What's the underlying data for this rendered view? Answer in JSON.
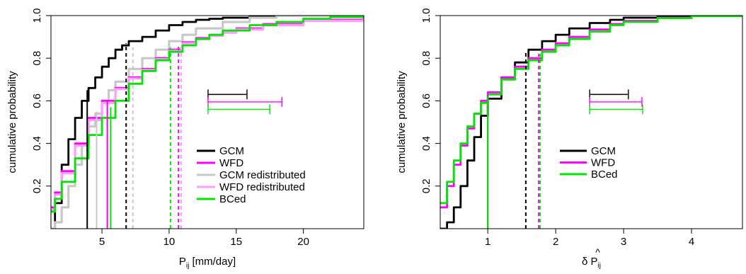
{
  "colors": {
    "GCM": "#000000",
    "WFD": "#ff00ff",
    "GCM redistributed": "#c8c8c8",
    "WFD redistributed": "#ff9cff",
    "BCed": "#00e600"
  },
  "chart_data": [
    {
      "type": "line",
      "subtype": "empirical-cdf",
      "title": "",
      "xlabel": "P",
      "xlabel_sub": "ij",
      "xlabel_unit": " [mm/day]",
      "ylabel": "cumulative probability",
      "xlim": [
        1.2,
        24.5
      ],
      "ylim": [
        0,
        1
      ],
      "xticks": [
        {
          "v": 5,
          "label": "5"
        },
        {
          "v": 10,
          "label": "10"
        },
        {
          "v": 15,
          "label": "15"
        },
        {
          "v": 20,
          "label": "20"
        }
      ],
      "yticks": [
        {
          "v": 0.2,
          "label": "0.2"
        },
        {
          "v": 0.4,
          "label": "0.4"
        },
        {
          "v": 0.6,
          "label": "0.6"
        },
        {
          "v": 0.8,
          "label": "0.8"
        },
        {
          "v": 1.0,
          "label": "1.0"
        }
      ],
      "grid": false,
      "legend": {
        "placement": "center-right",
        "entries": [
          "GCM",
          "WFD",
          "GCM redistributed",
          "WFD redistributed",
          "BCed"
        ]
      },
      "series": [
        {
          "name": "GCM",
          "x": [
            1.2,
            1.5,
            2.0,
            2.5,
            3.0,
            3.5,
            4.0,
            4.5,
            5.0,
            5.5,
            6.0,
            6.5,
            7.0,
            8.0,
            9.0,
            10.0,
            11.0,
            12.0,
            13.0,
            14.0,
            16.0,
            18.0,
            24.5
          ],
          "y": [
            0.0,
            0.12,
            0.3,
            0.42,
            0.52,
            0.6,
            0.66,
            0.71,
            0.76,
            0.8,
            0.84,
            0.86,
            0.88,
            0.9,
            0.93,
            0.955,
            0.97,
            0.98,
            0.985,
            0.99,
            0.997,
            1.0,
            1.0
          ]
        },
        {
          "name": "GCM redistributed",
          "x": [
            1.2,
            1.5,
            2.0,
            2.5,
            3.0,
            3.5,
            4.0,
            4.5,
            5.0,
            5.5,
            6.0,
            7.0,
            8.0,
            9.0,
            10.0,
            11.0,
            12.0,
            14.0,
            16.0,
            18.0,
            24.5
          ],
          "y": [
            0.0,
            0.03,
            0.1,
            0.2,
            0.3,
            0.4,
            0.48,
            0.54,
            0.6,
            0.65,
            0.69,
            0.75,
            0.8,
            0.84,
            0.88,
            0.91,
            0.94,
            0.97,
            0.99,
            1.0,
            1.0
          ]
        },
        {
          "name": "WFD",
          "x": [
            1.2,
            1.5,
            2.0,
            3.0,
            4.0,
            5.0,
            6.0,
            7.0,
            8.0,
            9.0,
            10.0,
            11.0,
            12.0,
            13.0,
            14.0,
            15.0,
            17.0,
            20.0,
            24.5
          ],
          "y": [
            0.1,
            0.17,
            0.27,
            0.4,
            0.52,
            0.6,
            0.66,
            0.71,
            0.75,
            0.8,
            0.84,
            0.875,
            0.895,
            0.91,
            0.925,
            0.94,
            0.96,
            0.98,
            0.99
          ]
        },
        {
          "name": "WFD redistributed",
          "x": [
            1.2,
            1.5,
            2.0,
            3.0,
            4.0,
            5.0,
            6.0,
            7.0,
            8.0,
            9.0,
            10.0,
            11.0,
            12.0,
            13.0,
            14.0,
            15.0,
            17.0,
            20.0,
            24.5
          ],
          "y": [
            0.09,
            0.16,
            0.26,
            0.39,
            0.51,
            0.59,
            0.655,
            0.705,
            0.745,
            0.795,
            0.835,
            0.87,
            0.89,
            0.905,
            0.92,
            0.935,
            0.955,
            0.975,
            0.985
          ]
        },
        {
          "name": "BCed",
          "x": [
            1.2,
            1.5,
            2.0,
            3.0,
            4.0,
            5.0,
            6.0,
            7.0,
            8.0,
            9.0,
            10.0,
            11.0,
            12.0,
            13.0,
            14.0,
            16.0,
            18.0,
            20.0,
            22.0,
            24.5
          ],
          "y": [
            0.08,
            0.14,
            0.22,
            0.33,
            0.44,
            0.52,
            0.6,
            0.68,
            0.74,
            0.79,
            0.83,
            0.86,
            0.89,
            0.91,
            0.93,
            0.955,
            0.97,
            0.985,
            0.993,
            1.0
          ]
        }
      ],
      "markers_solid": [
        {
          "series": "GCM",
          "x": 3.9,
          "y": 0.65
        },
        {
          "series": "WFD",
          "x": 5.4,
          "y": 0.6
        },
        {
          "series": "GCM redistributed",
          "x": 4.6,
          "y": 0.55
        },
        {
          "series": "BCed",
          "x": 5.65,
          "y": 0.57
        }
      ],
      "markers_dashed": [
        {
          "series": "GCM",
          "x": 6.8,
          "y": 0.87
        },
        {
          "series": "GCM redistributed",
          "x": 7.3,
          "y": 0.85
        },
        {
          "series": "BCed",
          "x": 10.1,
          "y": 0.85
        },
        {
          "series": "WFD",
          "x": 10.7,
          "y": 0.86
        },
        {
          "series": "WFD redistributed",
          "x": 10.9,
          "y": 0.86
        }
      ],
      "intervals": [
        {
          "series": "GCM",
          "x0": 12.9,
          "x1": 15.8,
          "y": 0.63
        },
        {
          "series": "WFD",
          "x0": 12.9,
          "x1": 18.4,
          "y": 0.595
        },
        {
          "series": "BCed",
          "x0": 12.9,
          "x1": 17.5,
          "y": 0.56
        }
      ]
    },
    {
      "type": "line",
      "subtype": "empirical-cdf",
      "title": "",
      "xlabel": "δ P",
      "xlabel_sub": "ij",
      "xlabel_hat": "^",
      "ylabel": "cumulative probability",
      "xlim": [
        0.3,
        4.75
      ],
      "ylim": [
        0,
        1
      ],
      "xticks": [
        {
          "v": 1,
          "label": "1"
        },
        {
          "v": 2,
          "label": "2"
        },
        {
          "v": 3,
          "label": "3"
        },
        {
          "v": 4,
          "label": "4"
        }
      ],
      "yticks": [
        {
          "v": 0.2,
          "label": "0.2"
        },
        {
          "v": 0.4,
          "label": "0.4"
        },
        {
          "v": 0.6,
          "label": "0.6"
        },
        {
          "v": 0.8,
          "label": "0.8"
        },
        {
          "v": 1.0,
          "label": "1.0"
        }
      ],
      "grid": false,
      "legend": {
        "placement": "center-right",
        "entries": [
          "GCM",
          "WFD",
          "BCed"
        ]
      },
      "series": [
        {
          "name": "GCM",
          "x": [
            0.3,
            0.4,
            0.5,
            0.6,
            0.7,
            0.8,
            0.9,
            1.0,
            1.2,
            1.4,
            1.6,
            1.8,
            2.0,
            2.2,
            2.5,
            2.8,
            3.0,
            3.5,
            4.0,
            4.75
          ],
          "y": [
            0.0,
            0.03,
            0.1,
            0.2,
            0.32,
            0.43,
            0.53,
            0.61,
            0.71,
            0.78,
            0.84,
            0.88,
            0.91,
            0.94,
            0.965,
            0.98,
            0.99,
            0.998,
            1.0,
            1.0
          ]
        },
        {
          "name": "WFD",
          "x": [
            0.3,
            0.4,
            0.5,
            0.6,
            0.7,
            0.8,
            0.9,
            1.0,
            1.2,
            1.4,
            1.6,
            1.8,
            2.0,
            2.2,
            2.5,
            2.8,
            3.0,
            3.5,
            4.0,
            4.75
          ],
          "y": [
            0.1,
            0.2,
            0.3,
            0.39,
            0.47,
            0.54,
            0.6,
            0.64,
            0.71,
            0.76,
            0.8,
            0.84,
            0.87,
            0.9,
            0.935,
            0.96,
            0.975,
            0.99,
            0.998,
            1.0
          ]
        },
        {
          "name": "BCed",
          "x": [
            0.3,
            0.4,
            0.5,
            0.6,
            0.7,
            0.8,
            0.9,
            1.0,
            1.2,
            1.4,
            1.6,
            1.8,
            2.0,
            2.2,
            2.5,
            2.8,
            3.0,
            3.5,
            4.0,
            4.75
          ],
          "y": [
            0.12,
            0.22,
            0.32,
            0.4,
            0.48,
            0.54,
            0.59,
            0.63,
            0.7,
            0.75,
            0.79,
            0.83,
            0.86,
            0.89,
            0.925,
            0.955,
            0.97,
            0.988,
            0.997,
            1.0
          ]
        }
      ],
      "markers_solid": [
        {
          "series": "GCM",
          "x": 1.0,
          "y": 0.61
        },
        {
          "series": "WFD",
          "x": 1.0,
          "y": 0.64
        },
        {
          "series": "BCed",
          "x": 1.0,
          "y": 0.62
        }
      ],
      "markers_dashed": [
        {
          "series": "GCM",
          "x": 1.56,
          "y": 0.83
        },
        {
          "series": "WFD",
          "x": 1.75,
          "y": 0.82
        },
        {
          "series": "BCed",
          "x": 1.77,
          "y": 0.82
        }
      ],
      "intervals": [
        {
          "series": "GCM",
          "x0": 2.5,
          "x1": 3.07,
          "y": 0.63
        },
        {
          "series": "WFD",
          "x0": 2.5,
          "x1": 3.27,
          "y": 0.595
        },
        {
          "series": "BCed",
          "x0": 2.5,
          "x1": 3.28,
          "y": 0.56
        }
      ]
    }
  ]
}
